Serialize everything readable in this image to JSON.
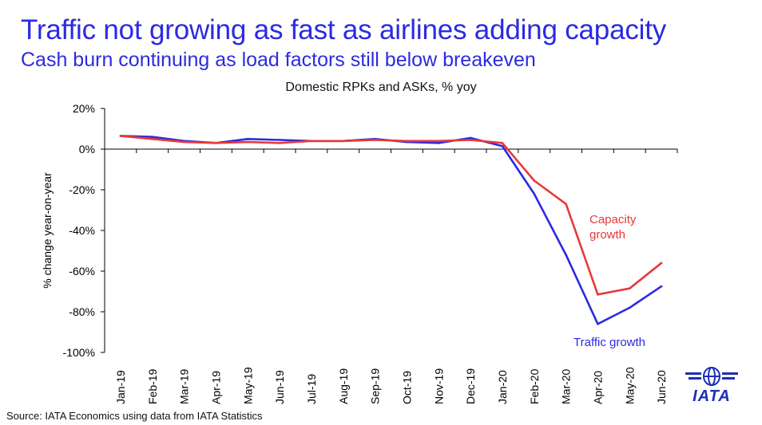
{
  "header": {
    "title": "Traffic not growing as fast as airlines adding capacity",
    "subtitle": "Cash burn continuing as load factors still below breakeven"
  },
  "footer": {
    "source": "Source: IATA Economics using data from IATA Statistics",
    "logo_text": "IATA"
  },
  "colors": {
    "traffic": "#2b2be0",
    "capacity": "#e8393a",
    "title": "#2b2be0"
  },
  "chart_data": {
    "type": "line",
    "title": "Domestic RPKs and ASKs, % yoy",
    "xlabel": "",
    "ylabel": "% change year-on-year",
    "ylim": [
      -100,
      20
    ],
    "yticks": [
      20,
      0,
      -20,
      -40,
      -60,
      -80,
      -100
    ],
    "ytick_labels": [
      "20%",
      "0%",
      "-20%",
      "-40%",
      "-60%",
      "-80%",
      "-100%"
    ],
    "categories": [
      "Jan-19",
      "Feb-19",
      "Mar-19",
      "Apr-19",
      "May-19",
      "Jun-19",
      "Jul-19",
      "Aug-19",
      "Sep-19",
      "Oct-19",
      "Nov-19",
      "Dec-19",
      "Jan-20",
      "Feb-20",
      "Mar-20",
      "Apr-20",
      "May-20",
      "Jun-20"
    ],
    "series": [
      {
        "name": "Traffic growth",
        "label": "Traffic growth",
        "color": "#2b2be0",
        "values": [
          6.5,
          6.0,
          4.0,
          3.0,
          5.0,
          4.5,
          4.0,
          4.0,
          5.0,
          3.5,
          3.0,
          5.5,
          1.5,
          -22.0,
          -52.0,
          -86.0,
          -78.0,
          -67.5
        ]
      },
      {
        "name": "Capacity growth",
        "label": "Capacity growth",
        "color": "#e8393a",
        "values": [
          6.5,
          5.0,
          3.5,
          3.0,
          3.5,
          3.0,
          4.0,
          4.0,
          4.5,
          4.0,
          4.0,
          4.5,
          3.0,
          -15.5,
          -27.0,
          -71.5,
          -68.5,
          -56.0
        ]
      }
    ],
    "grid": false
  }
}
